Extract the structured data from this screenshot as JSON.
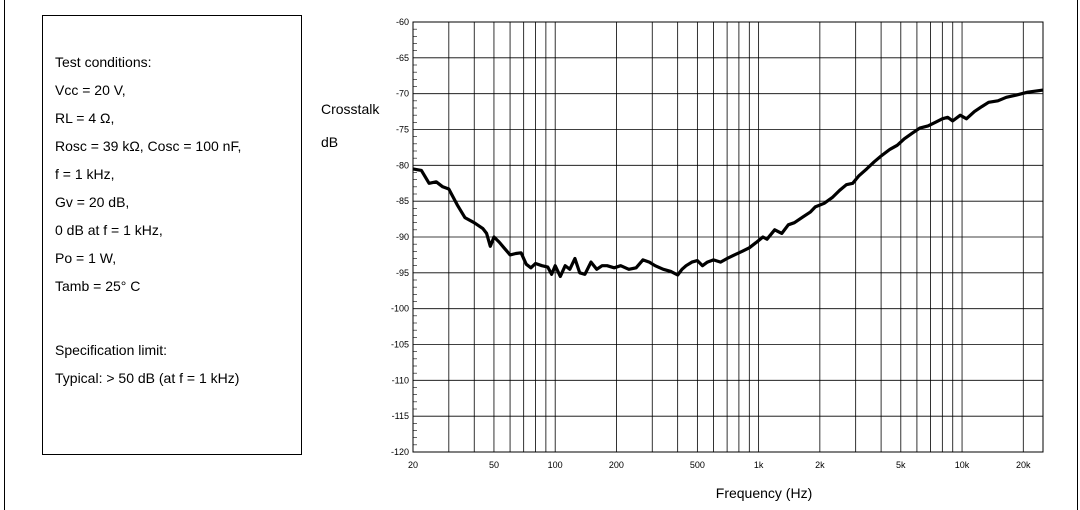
{
  "conditions": {
    "lines": [
      "Test conditions:",
      "Vcc = 20 V,",
      "RL = 4 Ω,",
      "Rosc = 39 kΩ, Cosc = 100 nF,",
      "f = 1 kHz,",
      "Gv = 20 dB,",
      "0 dB at f = 1 kHz,",
      "Po = 1 W,",
      "Tamb = 25° C",
      "",
      "Specification limit:",
      "Typical: > 50 dB (at f = 1 kHz)"
    ]
  },
  "chart_data": {
    "type": "line",
    "title": "",
    "ylabel_line1": "Crosstalk",
    "ylabel_line2": "dB",
    "xlabel": "Frequency (Hz)",
    "xscale": "log",
    "xlim": [
      20,
      25000
    ],
    "ylim": [
      -120,
      -60
    ],
    "grid": true,
    "y_ticks": [
      -60,
      -65,
      -70,
      -75,
      -80,
      -85,
      -90,
      -95,
      -100,
      -105,
      -110,
      -115,
      -120
    ],
    "x_tick_labels": [
      {
        "value": 20,
        "label": "20"
      },
      {
        "value": 50,
        "label": "50"
      },
      {
        "value": 100,
        "label": "100"
      },
      {
        "value": 200,
        "label": "200"
      },
      {
        "value": 500,
        "label": "500"
      },
      {
        "value": 1000,
        "label": "1k"
      },
      {
        "value": 2000,
        "label": "2k"
      },
      {
        "value": 5000,
        "label": "5k"
      },
      {
        "value": 10000,
        "label": "10k"
      },
      {
        "value": 20000,
        "label": "20k"
      }
    ],
    "series": [
      {
        "color": "#000000",
        "points": [
          [
            20,
            -80.5
          ],
          [
            22,
            -80.7
          ],
          [
            24,
            -82.5
          ],
          [
            26,
            -82.3
          ],
          [
            28,
            -83.0
          ],
          [
            30,
            -83.3
          ],
          [
            33,
            -85.5
          ],
          [
            36,
            -87.3
          ],
          [
            40,
            -88.0
          ],
          [
            44,
            -88.8
          ],
          [
            46,
            -89.5
          ],
          [
            48,
            -91.3
          ],
          [
            50,
            -90.0
          ],
          [
            53,
            -90.7
          ],
          [
            56,
            -91.5
          ],
          [
            60,
            -92.5
          ],
          [
            64,
            -92.3
          ],
          [
            68,
            -92.2
          ],
          [
            72,
            -93.8
          ],
          [
            76,
            -94.3
          ],
          [
            80,
            -93.7
          ],
          [
            86,
            -94.0
          ],
          [
            92,
            -94.2
          ],
          [
            96,
            -95.2
          ],
          [
            100,
            -94.0
          ],
          [
            106,
            -95.5
          ],
          [
            112,
            -94.0
          ],
          [
            118,
            -94.5
          ],
          [
            125,
            -93.0
          ],
          [
            132,
            -95.0
          ],
          [
            140,
            -95.2
          ],
          [
            150,
            -93.5
          ],
          [
            160,
            -94.5
          ],
          [
            170,
            -94.0
          ],
          [
            180,
            -94.0
          ],
          [
            195,
            -94.3
          ],
          [
            210,
            -94.0
          ],
          [
            230,
            -94.5
          ],
          [
            250,
            -94.3
          ],
          [
            270,
            -93.2
          ],
          [
            290,
            -93.5
          ],
          [
            310,
            -94.0
          ],
          [
            340,
            -94.5
          ],
          [
            370,
            -94.8
          ],
          [
            400,
            -95.3
          ],
          [
            420,
            -94.5
          ],
          [
            440,
            -94.0
          ],
          [
            470,
            -93.5
          ],
          [
            500,
            -93.3
          ],
          [
            530,
            -94.0
          ],
          [
            560,
            -93.5
          ],
          [
            600,
            -93.2
          ],
          [
            650,
            -93.5
          ],
          [
            700,
            -93.0
          ],
          [
            760,
            -92.5
          ],
          [
            830,
            -92.0
          ],
          [
            900,
            -91.5
          ],
          [
            970,
            -90.8
          ],
          [
            1050,
            -90.0
          ],
          [
            1100,
            -90.3
          ],
          [
            1200,
            -89.0
          ],
          [
            1300,
            -89.5
          ],
          [
            1400,
            -88.3
          ],
          [
            1500,
            -88.0
          ],
          [
            1650,
            -87.2
          ],
          [
            1800,
            -86.5
          ],
          [
            1900,
            -85.8
          ],
          [
            2100,
            -85.3
          ],
          [
            2300,
            -84.5
          ],
          [
            2500,
            -83.5
          ],
          [
            2700,
            -82.7
          ],
          [
            2900,
            -82.5
          ],
          [
            3100,
            -81.5
          ],
          [
            3400,
            -80.5
          ],
          [
            3700,
            -79.5
          ],
          [
            4000,
            -78.7
          ],
          [
            4400,
            -77.8
          ],
          [
            4800,
            -77.2
          ],
          [
            5200,
            -76.3
          ],
          [
            5700,
            -75.5
          ],
          [
            6200,
            -74.8
          ],
          [
            6800,
            -74.5
          ],
          [
            7400,
            -74.0
          ],
          [
            8000,
            -73.5
          ],
          [
            8500,
            -73.3
          ],
          [
            9000,
            -73.8
          ],
          [
            9800,
            -73.0
          ],
          [
            10500,
            -73.5
          ],
          [
            11500,
            -72.5
          ],
          [
            12500,
            -71.8
          ],
          [
            13500,
            -71.2
          ],
          [
            15000,
            -71.0
          ],
          [
            16500,
            -70.5
          ],
          [
            18500,
            -70.2
          ],
          [
            21000,
            -69.8
          ],
          [
            25000,
            -69.5
          ]
        ]
      }
    ]
  }
}
